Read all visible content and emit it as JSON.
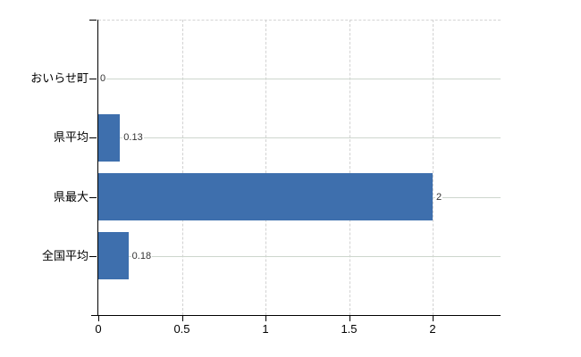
{
  "chart_data": {
    "type": "bar",
    "orientation": "horizontal",
    "title": "",
    "xlabel": "",
    "ylabel": "",
    "categories": [
      "おいらせ町",
      "県平均",
      "県最大",
      "全国平均"
    ],
    "values": [
      0,
      0.13,
      2,
      0.18
    ],
    "value_labels": [
      "0",
      "0.13",
      "2",
      "0.18"
    ],
    "x_ticks": [
      0,
      0.5,
      1,
      1.5,
      2
    ],
    "x_tick_labels": [
      "0",
      "0.5",
      "1",
      "1.5",
      "2"
    ],
    "xlim": [
      0,
      2.41
    ],
    "grid": "on",
    "legend": "none",
    "bar_color": "#3e6fad"
  },
  "colors": {
    "background": "#ffffff",
    "bar": "#3e6fad",
    "axis": "#000000",
    "grid_horizontal": "#cdd6cd",
    "grid_vertical": "#d2d2d2",
    "grid_top_dashed": "#d4d4d4",
    "category_text": "#000000",
    "tick_text": "#000000",
    "value_text": "#333333"
  }
}
